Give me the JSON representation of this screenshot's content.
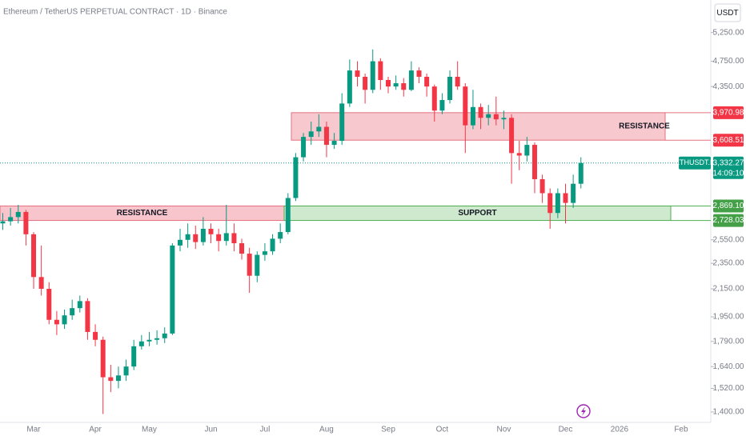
{
  "chart_data": {
    "type": "candlestick",
    "title": "Ethereum / TetherUS PERPETUAL CONTRACT · 1D · Binance",
    "currency": "USDT",
    "symbol": "ETHUSDT.P",
    "countdown": "14:09:10",
    "log_scale": true,
    "up_color": "#089981",
    "down_color": "#f23645",
    "categories": [
      null,
      null,
      null,
      null,
      "Mar",
      null,
      null,
      null,
      null,
      null,
      null,
      null,
      "Apr",
      null,
      null,
      null,
      null,
      null,
      null,
      "May",
      null,
      null,
      null,
      null,
      null,
      null,
      null,
      "Jun",
      null,
      null,
      null,
      null,
      null,
      null,
      "Jul",
      null,
      null,
      null,
      null,
      null,
      null,
      null,
      "Aug",
      null,
      null,
      null,
      null,
      null,
      null,
      null,
      "Sep",
      null,
      null,
      null,
      null,
      null,
      null,
      "Oct",
      null,
      null,
      null,
      null,
      null,
      null,
      null,
      "Nov",
      null,
      null,
      null,
      null,
      null,
      null,
      null,
      "Dec",
      null,
      null,
      null,
      null,
      null,
      null,
      "2026",
      null,
      null,
      null,
      null,
      null,
      null,
      null,
      "Feb"
    ],
    "open": [
      2700,
      2720,
      2760,
      2810,
      2600,
      2240,
      2150,
      1930,
      1900,
      1960,
      2010,
      2060,
      1850,
      1800,
      1580,
      1560,
      1590,
      1640,
      1760,
      1790,
      1800,
      1810,
      1840,
      2500,
      2550,
      2600,
      2530,
      2650,
      2600,
      2540,
      2610,
      2520,
      2430,
      2250,
      2420,
      2450,
      2560,
      2620,
      2950,
      3400,
      3650,
      3720,
      3780,
      3550,
      3600,
      4100,
      4600,
      4500,
      4300,
      4750,
      4450,
      4350,
      4400,
      4300,
      4600,
      4500,
      4350,
      4000,
      4150,
      4500,
      4350,
      3800,
      4050,
      3900,
      3950,
      3880,
      3900,
      3450,
      3420,
      3550,
      3150,
      3000,
      2800,
      3000,
      2900,
      3100,
      null,
      null,
      null,
      null,
      null,
      null,
      null,
      null,
      null,
      null,
      null,
      null,
      null
    ],
    "high": [
      2800,
      2850,
      2880,
      2830,
      2620,
      2500,
      2200,
      1990,
      2000,
      2070,
      2100,
      2080,
      1900,
      1820,
      1650,
      1640,
      1680,
      1800,
      1830,
      1850,
      1860,
      1880,
      2520,
      2650,
      2700,
      2680,
      2760,
      2700,
      2650,
      2880,
      2700,
      2560,
      2480,
      2450,
      2520,
      2600,
      2700,
      3000,
      3450,
      3700,
      3850,
      3950,
      3850,
      3700,
      4250,
      4780,
      4750,
      4550,
      4950,
      4800,
      4500,
      4520,
      4480,
      4750,
      4650,
      4550,
      4380,
      4250,
      4600,
      4750,
      4400,
      4300,
      4100,
      4080,
      4200,
      4000,
      3950,
      3600,
      3650,
      3580,
      3200,
      3050,
      3050,
      3100,
      3200,
      3400,
      null,
      null,
      null,
      null,
      null,
      null,
      null,
      null,
      null,
      null,
      null,
      null,
      null
    ],
    "low": [
      2640,
      2680,
      2700,
      2500,
      2150,
      2100,
      1900,
      1830,
      1870,
      1930,
      1980,
      1800,
      1760,
      1390,
      1500,
      1520,
      1560,
      1620,
      1740,
      1760,
      1770,
      1780,
      1830,
      2450,
      2480,
      2470,
      2500,
      2520,
      2450,
      2500,
      2450,
      2380,
      2120,
      2200,
      2370,
      2420,
      2520,
      2600,
      2920,
      3350,
      3550,
      3650,
      3400,
      3500,
      3550,
      4050,
      4350,
      4100,
      4250,
      4300,
      4250,
      4300,
      4200,
      4280,
      4400,
      4200,
      3850,
      3950,
      4100,
      4300,
      3450,
      3750,
      3750,
      3800,
      3800,
      3750,
      3100,
      3250,
      3350,
      3000,
      2900,
      2650,
      2750,
      2700,
      2850,
      3050,
      null,
      null,
      null,
      null,
      null,
      null,
      null,
      null,
      null,
      null,
      null,
      null,
      null
    ],
    "close": [
      2720,
      2760,
      2810,
      2600,
      2240,
      2150,
      1930,
      1900,
      1960,
      2010,
      2060,
      1850,
      1800,
      1580,
      1560,
      1590,
      1640,
      1760,
      1790,
      1800,
      1810,
      1840,
      2500,
      2550,
      2600,
      2530,
      2650,
      2600,
      2540,
      2610,
      2520,
      2430,
      2250,
      2420,
      2450,
      2560,
      2620,
      2950,
      3400,
      3650,
      3720,
      3780,
      3550,
      3600,
      4100,
      4600,
      4500,
      4300,
      4750,
      4450,
      4350,
      4400,
      4300,
      4600,
      4500,
      4350,
      4000,
      4150,
      4500,
      4350,
      3800,
      4050,
      3900,
      3950,
      3880,
      3900,
      3450,
      3420,
      3550,
      3150,
      3000,
      2800,
      3000,
      2900,
      3100,
      3332.27,
      null,
      null,
      null,
      null,
      null,
      null,
      null,
      null,
      null,
      null,
      null,
      null,
      null
    ],
    "last_price": {
      "value": 3332.27,
      "label": "3,332.27"
    },
    "ylim": [
      1350,
      5880
    ],
    "yticks": [
      {
        "value": 5250,
        "label": "5,250.00"
      },
      {
        "value": 4750,
        "label": "4,750.00"
      },
      {
        "value": 4350,
        "label": "4,350.00"
      },
      {
        "value": 2550,
        "label": "2,550.00"
      },
      {
        "value": 2350,
        "label": "2,350.00"
      },
      {
        "value": 2150,
        "label": "2,150.00"
      },
      {
        "value": 1950,
        "label": "1,950.00"
      },
      {
        "value": 1790,
        "label": "1,790.00"
      },
      {
        "value": 1640,
        "label": "1,640.00"
      },
      {
        "value": 1520,
        "label": "1,520.00"
      },
      {
        "value": 1400,
        "label": "1,400.00"
      }
    ],
    "zones": [
      {
        "label": "RESISTANCE",
        "color": "#f7c9cf",
        "border": "#e5707f",
        "tag_color": "#f23645",
        "low": {
          "value": 3608.51,
          "label": "3,608.51"
        },
        "high": {
          "value": 3970.98,
          "label": "3,970.98"
        }
      },
      {
        "label": "RESISTANCE",
        "color": "#f9c5cc",
        "border": "#e5707f",
        "low": 2728.03,
        "high": 2869.1
      },
      {
        "label": "SUPPORT",
        "color": "#cfe9cf",
        "border": "#4caf50",
        "tag_color": "#43a047",
        "low": {
          "value": 2728.03,
          "label": "2,728.03"
        },
        "high": {
          "value": 2869.1,
          "label": "2,869.10"
        }
      }
    ]
  }
}
